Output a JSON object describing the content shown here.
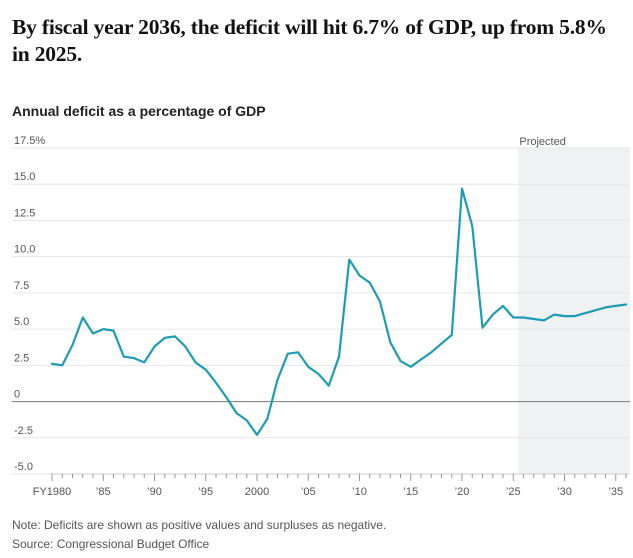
{
  "headline": "By fiscal year 2036, the deficit will hit 6.7% of GDP, up from 5.8% in 2025.",
  "subtitle": "Annual deficit as a percentage of GDP",
  "note": "Note: Deficits are shown as positive values and surpluses as negative.",
  "source": "Source: Congressional Budget Office",
  "colors": {
    "line": "#1e9cb4",
    "projected_shade": "#f0f1f2",
    "zero_line": "#888888",
    "grid": "#e6e6e6"
  },
  "chart_data": {
    "type": "line",
    "title": "Annual deficit as a percentage of GDP",
    "xlabel": "",
    "ylabel": "",
    "xlim": [
      1980,
      2036
    ],
    "ylim": [
      -5,
      17.5
    ],
    "y_ticks": [
      -5,
      -2.5,
      0,
      2.5,
      5,
      7.5,
      10,
      12.5,
      15,
      17.5
    ],
    "y_tick_labels": [
      "-5.0",
      "-2.5",
      "0",
      "2.5",
      "5.0",
      "7.5",
      "10.0",
      "12.5",
      "15.0",
      "17.5%"
    ],
    "x_ticks": [
      1980,
      1985,
      1990,
      1995,
      2000,
      2005,
      2010,
      2015,
      2020,
      2025,
      2030,
      2035
    ],
    "x_tick_labels": [
      "FY1980",
      "'85",
      "'90",
      "'95",
      "2000",
      "'05",
      "'10",
      "'15",
      "'20",
      "'25",
      "'30",
      "'35"
    ],
    "projected_region": {
      "start": 2025.5,
      "end": 2036,
      "label": "Projected"
    },
    "series": [
      {
        "name": "Annual deficit (% of GDP)",
        "x": [
          1980,
          1981,
          1982,
          1983,
          1984,
          1985,
          1986,
          1987,
          1988,
          1989,
          1990,
          1991,
          1992,
          1993,
          1994,
          1995,
          1996,
          1997,
          1998,
          1999,
          2000,
          2001,
          2002,
          2003,
          2004,
          2005,
          2006,
          2007,
          2008,
          2009,
          2010,
          2011,
          2012,
          2013,
          2014,
          2015,
          2016,
          2017,
          2018,
          2019,
          2020,
          2021,
          2022,
          2023,
          2024,
          2025,
          2026,
          2027,
          2028,
          2029,
          2030,
          2031,
          2032,
          2033,
          2034,
          2035,
          2036
        ],
        "values": [
          2.6,
          2.5,
          3.9,
          5.8,
          4.7,
          5.0,
          4.9,
          3.1,
          3.0,
          2.7,
          3.8,
          4.4,
          4.5,
          3.8,
          2.7,
          2.2,
          1.3,
          0.3,
          -0.8,
          -1.3,
          -2.3,
          -1.2,
          1.5,
          3.3,
          3.4,
          2.4,
          1.9,
          1.1,
          3.1,
          9.8,
          8.7,
          8.2,
          6.9,
          4.1,
          2.8,
          2.4,
          2.9,
          3.4,
          4.0,
          4.6,
          14.7,
          12.1,
          5.1,
          6.0,
          6.6,
          5.8,
          5.8,
          5.7,
          5.6,
          6.0,
          5.9,
          5.9,
          6.1,
          6.3,
          6.5,
          6.6,
          6.7
        ]
      }
    ]
  }
}
